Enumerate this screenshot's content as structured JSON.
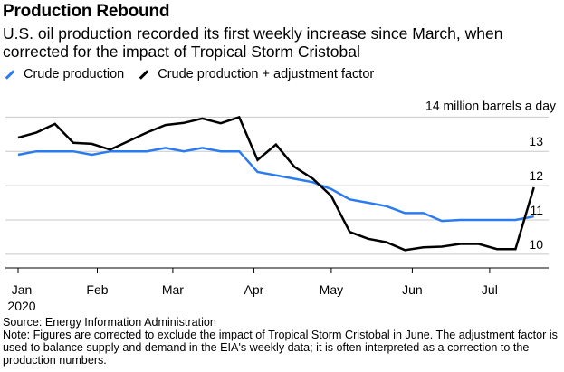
{
  "header": {
    "title": "Production Rebound",
    "subtitle": "U.S. oil production recorded its first weekly increase since March, when corrected for the impact of Tropical Storm Cristobal"
  },
  "footer": {
    "source": "Source: Energy Information Administration",
    "note": "Note: Figures are corrected to exclude the impact of Tropical Storm Cristobal in June. The adjustment factor is used to balance supply and demand in the EIA's weekly data; it is often interpreted as a correction to the production numbers."
  },
  "colors": {
    "crude": "#2b7bf0",
    "adjusted": "#000000",
    "grid": "#c8c8c8"
  },
  "chart_data": {
    "type": "line",
    "title": "Production Rebound",
    "ylabel": "14 million barrels a day",
    "ylim": [
      9.6,
      14.3
    ],
    "y_ticks": [
      "10",
      "11",
      "12",
      "13"
    ],
    "y_tick_values": [
      10,
      11,
      12,
      13
    ],
    "x_ticks": [
      {
        "label": "Jan",
        "week": 0
      },
      {
        "label": "Feb",
        "week": 4.3
      },
      {
        "label": "Mar",
        "week": 8.4
      },
      {
        "label": "Apr",
        "week": 12.8
      },
      {
        "label": "May",
        "week": 17
      },
      {
        "label": "Jun",
        "week": 21.4
      },
      {
        "label": "Jul",
        "week": 25.6
      }
    ],
    "x_year_label": "2020",
    "xlim": [
      0,
      28.8
    ],
    "legend_position": "top-left",
    "series": [
      {
        "name": "Crude production",
        "color": "#2b7bf0",
        "x": [
          0,
          1,
          2,
          3,
          4,
          5,
          6,
          7,
          8,
          9,
          10,
          11,
          12,
          13,
          14,
          15,
          16,
          17,
          18,
          19,
          20,
          21,
          22,
          23,
          24,
          25,
          26,
          27,
          28
        ],
        "values": [
          12.9,
          13.0,
          13.0,
          13.0,
          12.9,
          13.0,
          13.0,
          13.0,
          13.1,
          13.0,
          13.1,
          13.0,
          13.0,
          12.4,
          12.3,
          12.2,
          12.1,
          11.9,
          11.6,
          11.5,
          11.4,
          11.2,
          11.2,
          10.97,
          11.0,
          11.0,
          11.0,
          11.0,
          11.1
        ]
      },
      {
        "name": "Crude production + adjustment factor",
        "color": "#000000",
        "x": [
          0,
          1,
          2,
          3,
          4,
          5,
          6,
          7,
          8,
          9,
          10,
          11,
          12,
          13,
          14,
          15,
          16,
          17,
          18,
          19,
          20,
          21,
          22,
          23,
          24,
          25,
          26,
          27,
          28
        ],
        "values": [
          13.4,
          13.55,
          13.8,
          13.25,
          13.22,
          13.05,
          13.3,
          13.55,
          13.77,
          13.83,
          13.96,
          13.82,
          14.0,
          12.75,
          13.2,
          12.55,
          12.2,
          11.7,
          10.65,
          10.45,
          10.35,
          10.12,
          10.2,
          10.22,
          10.3,
          10.3,
          10.15,
          10.15,
          11.95
        ]
      }
    ]
  }
}
